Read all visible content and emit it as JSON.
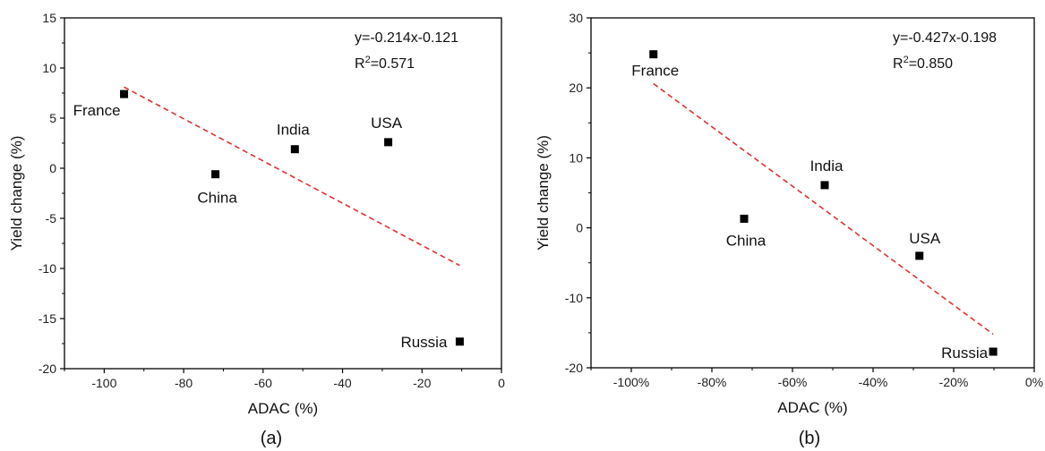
{
  "chart_data": [
    {
      "type": "scatter",
      "panel_label": "(a)",
      "xlabel": "ADAC (%)",
      "ylabel": "Yield change (%)",
      "xlim": [
        -110,
        0
      ],
      "ylim": [
        -20,
        15
      ],
      "x_ticks": [
        -100,
        -80,
        -60,
        -40,
        -20,
        0
      ],
      "y_ticks": [
        -20,
        -15,
        -10,
        -5,
        0,
        5,
        10,
        15
      ],
      "x_tick_labels": [
        "-100",
        "-80",
        "-60",
        "-40",
        "-20",
        "0"
      ],
      "y_tick_labels": [
        "-20",
        "-15",
        "-10",
        "-5",
        "0",
        "5",
        "10",
        "15"
      ],
      "points": [
        {
          "label": "France",
          "x": -95,
          "y": 7.4
        },
        {
          "label": "China",
          "x": -72,
          "y": -0.6
        },
        {
          "label": "India",
          "x": -52,
          "y": 1.9
        },
        {
          "label": "USA",
          "x": -28.5,
          "y": 2.6
        },
        {
          "label": "Russia",
          "x": -10.5,
          "y": -17.3
        }
      ],
      "fit": {
        "x_range": [
          -95,
          -10.5
        ],
        "y_range": [
          8.1,
          -9.7
        ],
        "color": "#e03030"
      },
      "equation": "y=-0.214x-0.121",
      "r2_prefix": "R",
      "r2_sup": "2",
      "r2_value": "=0.571",
      "grid": false
    },
    {
      "type": "scatter",
      "panel_label": "(b)",
      "xlabel": "ADAC (%)",
      "ylabel": "Yield change (%)",
      "xlim": [
        -110,
        0
      ],
      "ylim": [
        -20,
        30
      ],
      "x_ticks": [
        -100,
        -80,
        -60,
        -40,
        -20,
        0
      ],
      "y_ticks": [
        -20,
        -10,
        0,
        10,
        20,
        30
      ],
      "x_tick_labels": [
        "-100%",
        "-80%",
        "-60%",
        "-40%",
        "-20%",
        "0%"
      ],
      "y_tick_labels": [
        "-20",
        "-10",
        "0",
        "10",
        "20",
        "30"
      ],
      "points": [
        {
          "label": "France",
          "x": -94.5,
          "y": 24.8
        },
        {
          "label": "China",
          "x": -72,
          "y": 1.3
        },
        {
          "label": "India",
          "x": -52,
          "y": 6.1
        },
        {
          "label": "USA",
          "x": -28.5,
          "y": -4.0
        },
        {
          "label": "Russia",
          "x": -10.2,
          "y": -17.7
        }
      ],
      "fit": {
        "x_range": [
          -94.5,
          -10.2
        ],
        "y_range": [
          20.6,
          -15.2
        ],
        "color": "#e03030"
      },
      "equation": "y=-0.427x-0.198",
      "r2_prefix": "R",
      "r2_sup": "2",
      "r2_value": "=0.850",
      "grid": false
    }
  ]
}
